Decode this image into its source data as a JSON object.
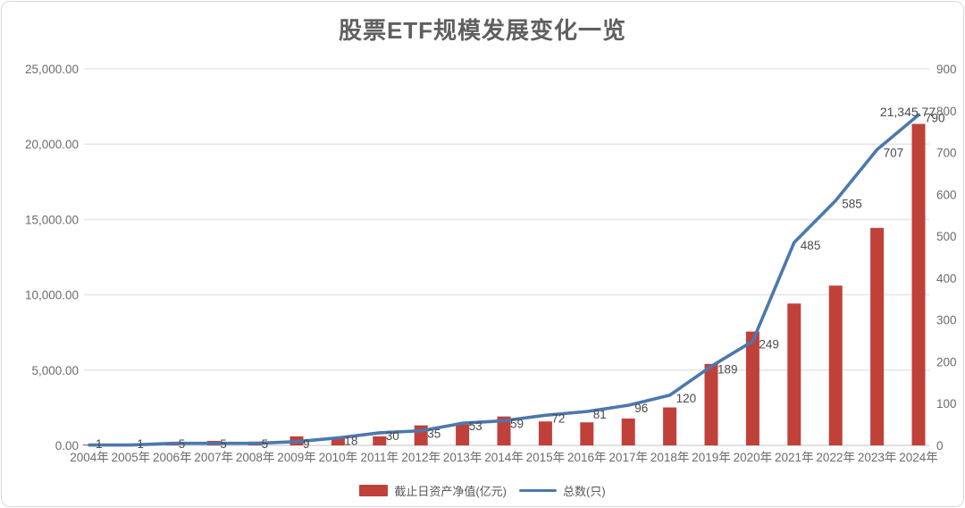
{
  "card": {
    "title": "股票ETF规模发展变化一览"
  },
  "colors": {
    "bar": "#c0413a",
    "line": "#4c78ad",
    "grid": "#e7e7e7",
    "axis_line": "#d6d6d6",
    "tick_label": "#6b6b6b",
    "point_label": "#4a4a4a",
    "title": "#606060"
  },
  "chart_data": {
    "type": "bar",
    "combo": "bar+line dual axis",
    "title": "股票ETF规模发展变化一览",
    "categories": [
      "2004年",
      "2005年",
      "2006年",
      "2007年",
      "2008年",
      "2009年",
      "2010年",
      "2011年",
      "2012年",
      "2013年",
      "2014年",
      "2015年",
      "2016年",
      "2017年",
      "2018年",
      "2019年",
      "2020年",
      "2021年",
      "2022年",
      "2023年",
      "2024年"
    ],
    "series": [
      {
        "name": "截止日资产净值(亿元)",
        "type": "bar",
        "axis": "left",
        "color": "#c0413a",
        "values": [
          50,
          60,
          85,
          300,
          250,
          600,
          560,
          600,
          1330,
          1385,
          1920,
          1590,
          1530,
          1785,
          2520,
          5410,
          7560,
          9420,
          10610,
          14440,
          21345.77
        ],
        "shown_label": {
          "category": "2024年",
          "index": 20,
          "text": "21,345.77"
        }
      },
      {
        "name": "总数(只)",
        "type": "line",
        "axis": "right",
        "color": "#4c78ad",
        "values": [
          1,
          1,
          5,
          5,
          5,
          9,
          18,
          30,
          35,
          53,
          59,
          72,
          81,
          96,
          120,
          189,
          249,
          485,
          585,
          707,
          790
        ],
        "labels_visible": true
      }
    ],
    "left_axis": {
      "min": 0,
      "max": 25000,
      "step": 5000,
      "tick_labels": [
        "0.00",
        "5,000.00",
        "10,000.00",
        "15,000.00",
        "20,000.00",
        "25,000.00"
      ]
    },
    "right_axis": {
      "min": 0,
      "max": 900,
      "step": 100,
      "tick_labels": [
        "0",
        "100",
        "200",
        "300",
        "400",
        "500",
        "600",
        "700",
        "800",
        "900"
      ]
    },
    "grid": "horizontal gridlines at left-axis ticks",
    "legend_position": "bottom"
  }
}
